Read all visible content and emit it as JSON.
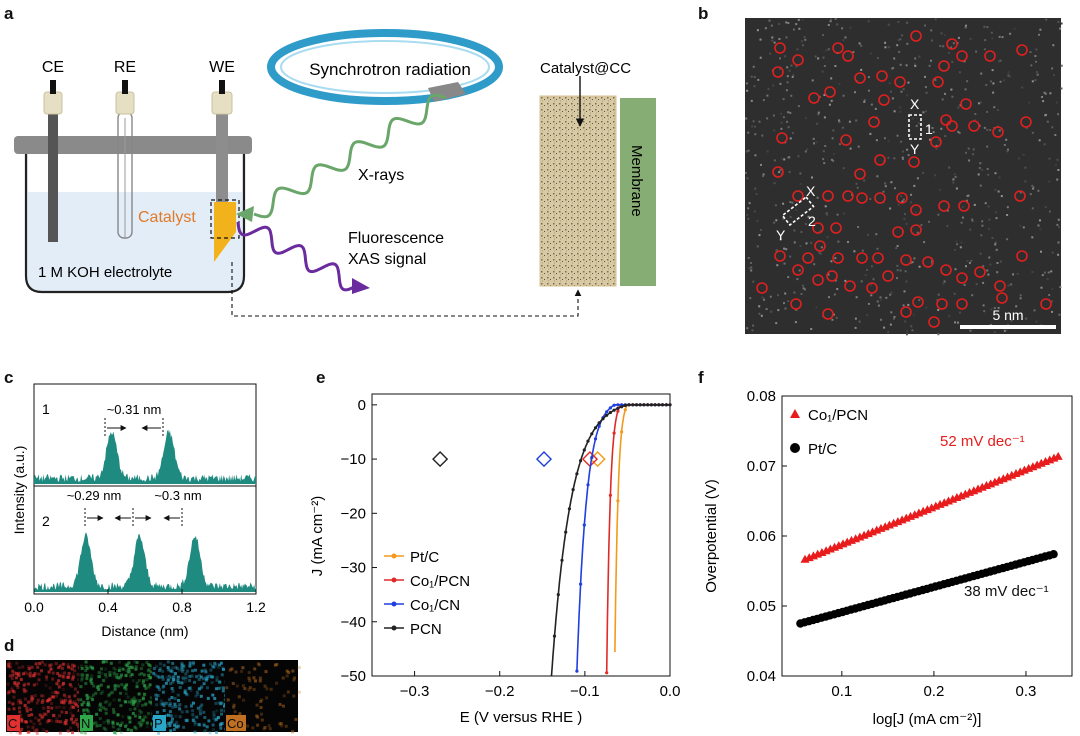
{
  "panels": {
    "a": {
      "letter": "a",
      "electrodes": [
        "CE",
        "RE",
        "WE"
      ],
      "synchrotron_label": "Synchrotron radiation",
      "xrays_label": "X-rays",
      "catalyst_label": "Catalyst",
      "fluorescence_label": "Fluorescence",
      "xas_label": "XAS signal",
      "electrolyte_label": "1 M KOH electrolyte",
      "catalyst_cc_label": "Catalyst@CC",
      "membrane_label": "Membrane",
      "colors": {
        "catalyst": "#f2b21b",
        "xray": "#6aa66a",
        "fluorescence": "#6a2b9e",
        "membrane": "#86ad73",
        "ring": "#2f9bc8",
        "catalyst_text": "#e07a2a"
      }
    },
    "b": {
      "letter": "b",
      "scale_label": "5 nm",
      "line1_labels": [
        "X",
        "1",
        "Y"
      ],
      "line2_labels": [
        "X",
        "2",
        "Y"
      ],
      "marker_color": "#e02020"
    },
    "c": {
      "letter": "c",
      "trace_labels": [
        "1",
        "2"
      ],
      "annotations": [
        "~0.31 nm",
        "~0.29 nm",
        "~0.3 nm"
      ],
      "color": "#1f8a80"
    },
    "d": {
      "letter": "d",
      "maps": [
        {
          "label": "C",
          "color": "#e03030"
        },
        {
          "label": "N",
          "color": "#2fa84a"
        },
        {
          "label": "P",
          "color": "#2aa6c9"
        },
        {
          "label": "Co",
          "color": "#c07020"
        }
      ]
    },
    "e": {
      "letter": "e"
    },
    "f": {
      "letter": "f",
      "slope_labels": [
        "52 mV dec⁻¹",
        "38 mV dec⁻¹"
      ]
    }
  },
  "chart_data": [
    {
      "id": "c",
      "type": "line",
      "xlabel": "Distance (nm)",
      "ylabel": "Intensity (a.u.)",
      "xlim": [
        0.0,
        1.2
      ],
      "xticks": [
        "0.0",
        "0.4",
        "0.8",
        "1.2"
      ],
      "series": [
        {
          "name": "1",
          "peaks_nm": [
            0.42,
            0.73
          ]
        },
        {
          "name": "2",
          "peaks_nm": [
            0.28,
            0.57,
            0.87
          ]
        }
      ]
    },
    {
      "id": "e",
      "type": "line",
      "xlabel": "E (V versus RHE )",
      "ylabel": "J (mA cm⁻²)",
      "xlim": [
        -0.35,
        0.0
      ],
      "ylim": [
        -50,
        2
      ],
      "xticks": [
        "−0.3",
        "−0.2",
        "−0.1",
        "0.0"
      ],
      "yticks": [
        "0",
        "−10",
        "−20",
        "−30",
        "−40",
        "−50"
      ],
      "legend_position": "bottom-left",
      "series": [
        {
          "name": "Pt/C",
          "color": "#f39a1c",
          "onset": -0.05,
          "k": 62,
          "eta10": -0.085
        },
        {
          "name": "Co₁/PCN",
          "color": "#e02a2a",
          "onset": -0.058,
          "k": 57,
          "eta10": -0.094
        },
        {
          "name": "Co₁/CN",
          "color": "#1f3fe0",
          "onset": -0.065,
          "k": 21,
          "eta10": -0.148
        },
        {
          "name": "PCN",
          "color": "#222222",
          "onset": -0.05,
          "k": 10.5,
          "eta10": -0.27
        }
      ]
    },
    {
      "id": "f",
      "type": "scatter",
      "xlabel": "log[J (mA cm⁻²)]",
      "ylabel": "Overpotential (V)",
      "xlim": [
        0.035,
        0.35
      ],
      "ylim": [
        0.04,
        0.08
      ],
      "xticks": [
        "0.1",
        "0.2",
        "0.3"
      ],
      "yticks": [
        "0.04",
        "0.05",
        "0.06",
        "0.07",
        "0.08"
      ],
      "legend_position": "top-left",
      "series": [
        {
          "name": "Co₁/PCN",
          "color": "#e81c1c",
          "marker": "triangle",
          "x_start": 0.06,
          "x_end": 0.335,
          "y_start": 0.0566,
          "y_end": 0.0713
        },
        {
          "name": "Pt/C",
          "color": "#000000",
          "marker": "circle",
          "x_start": 0.055,
          "x_end": 0.33,
          "y_start": 0.0475,
          "y_end": 0.0574
        }
      ]
    }
  ]
}
